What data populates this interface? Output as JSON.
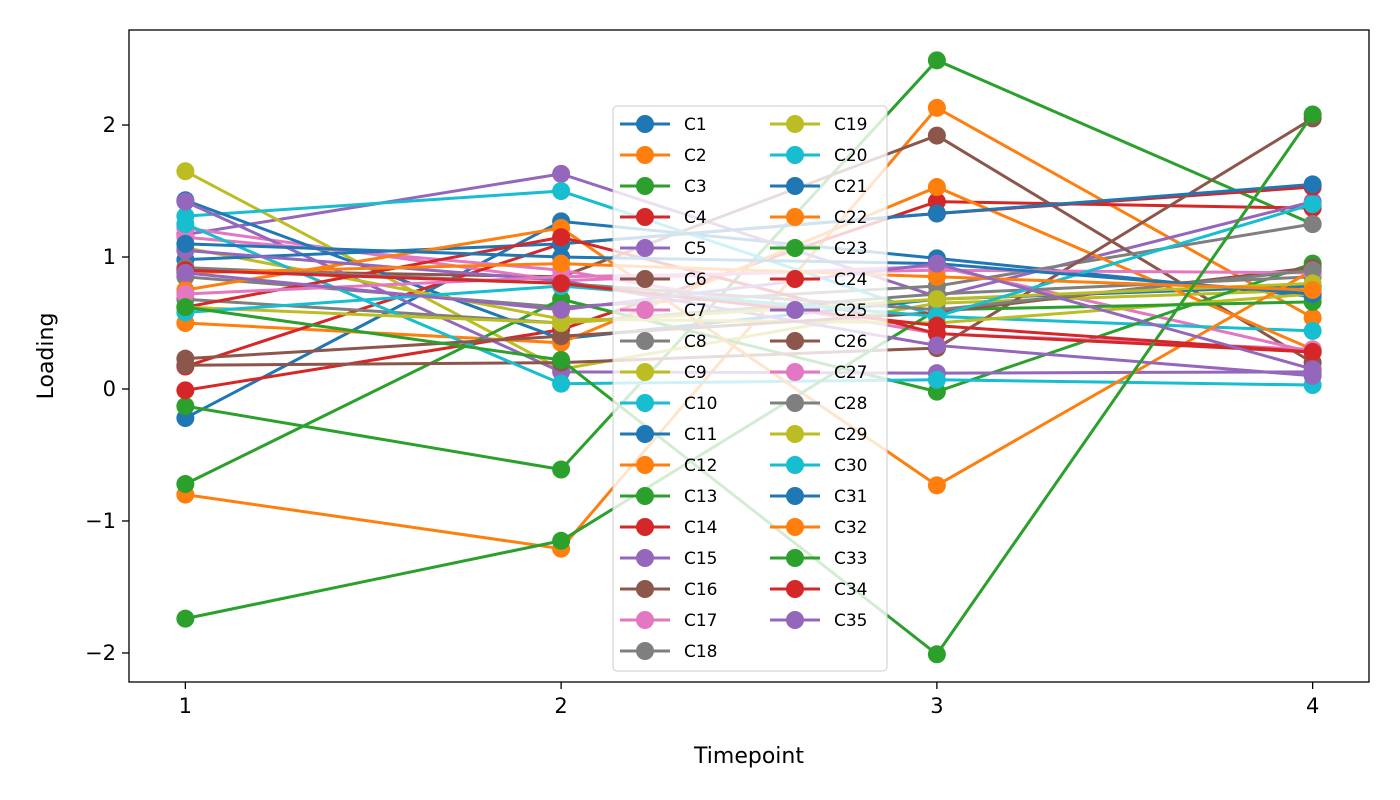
{
  "chart_data": {
    "type": "line",
    "xlabel": "Timepoint",
    "ylabel": "Loading",
    "x": [
      1,
      2,
      3,
      4
    ],
    "xticks": [
      1,
      2,
      3,
      4
    ],
    "yticks": [
      -2,
      -1,
      0,
      1,
      2
    ],
    "xlim": [
      0.85,
      4.15
    ],
    "ylim": [
      -2.22,
      2.72
    ],
    "grid": false,
    "legend_placement": "center",
    "legend_columns": 2,
    "markers": "circle",
    "palette": [
      "#1f77b4",
      "#ff7f0e",
      "#2ca02c",
      "#d62728",
      "#9467bd",
      "#8c564b",
      "#e377c2",
      "#7f7f7f",
      "#bcbd22",
      "#17becf"
    ],
    "series": [
      {
        "name": "C1",
        "values": [
          -0.22,
          1.27,
          0.99,
          0.7
        ]
      },
      {
        "name": "C2",
        "values": [
          -0.8,
          -1.21,
          2.13,
          0.54
        ]
      },
      {
        "name": "C3",
        "values": [
          -0.13,
          -0.61,
          2.49,
          1.25
        ]
      },
      {
        "name": "C4",
        "values": [
          -0.01,
          0.45,
          1.42,
          1.37
        ]
      },
      {
        "name": "C5",
        "values": [
          1.17,
          1.63,
          0.7,
          1.42
        ]
      },
      {
        "name": "C6",
        "values": [
          0.9,
          0.85,
          1.92,
          0.2
        ]
      },
      {
        "name": "C7",
        "values": [
          1.22,
          0.82,
          0.93,
          0.28
        ]
      },
      {
        "name": "C8",
        "values": [
          0.85,
          0.62,
          0.78,
          1.25
        ]
      },
      {
        "name": "C9",
        "values": [
          1.65,
          0.15,
          0.65,
          0.75
        ]
      },
      {
        "name": "C10",
        "values": [
          1.31,
          1.5,
          0.55,
          0.44
        ]
      },
      {
        "name": "C11",
        "values": [
          1.43,
          0.38,
          0.68,
          0.78
        ]
      },
      {
        "name": "C12",
        "values": [
          0.5,
          0.35,
          1.53,
          0.3
        ]
      },
      {
        "name": "C13",
        "values": [
          -0.72,
          0.68,
          -0.02,
          0.95
        ]
      },
      {
        "name": "C14",
        "values": [
          0.17,
          1.1,
          1.33,
          1.53
        ]
      },
      {
        "name": "C15",
        "values": [
          1.42,
          0.13,
          0.12,
          0.13
        ]
      },
      {
        "name": "C16",
        "values": [
          0.18,
          0.2,
          0.31,
          2.05
        ]
      },
      {
        "name": "C17",
        "values": [
          1.15,
          0.9,
          0.42,
          0.3
        ]
      },
      {
        "name": "C18",
        "values": [
          0.68,
          0.5,
          0.72,
          0.85
        ]
      },
      {
        "name": "C19",
        "values": [
          1.07,
          0.53,
          0.5,
          0.72
        ]
      },
      {
        "name": "C20",
        "values": [
          1.25,
          0.04,
          0.07,
          0.03
        ]
      },
      {
        "name": "C21",
        "values": [
          0.98,
          1.1,
          1.33,
          1.55
        ]
      },
      {
        "name": "C22",
        "values": [
          0.75,
          1.22,
          -0.73,
          0.9
        ]
      },
      {
        "name": "C23",
        "values": [
          -1.74,
          -1.15,
          0.6,
          0.66
        ]
      },
      {
        "name": "C24",
        "values": [
          0.62,
          1.15,
          0.42,
          0.28
        ]
      },
      {
        "name": "C25",
        "values": [
          1.05,
          0.82,
          0.33,
          0.1
        ]
      },
      {
        "name": "C26",
        "values": [
          0.23,
          0.4,
          0.58,
          0.92
        ]
      },
      {
        "name": "C27",
        "values": [
          0.72,
          0.85,
          0.9,
          0.88
        ]
      },
      {
        "name": "C28",
        "values": [
          0.92,
          0.8,
          0.6,
          0.9
        ]
      },
      {
        "name": "C29",
        "values": [
          0.62,
          0.5,
          0.68,
          0.8
        ]
      },
      {
        "name": "C30",
        "values": [
          0.58,
          0.78,
          0.55,
          1.4
        ]
      },
      {
        "name": "C31",
        "values": [
          1.1,
          1.0,
          0.95,
          0.72
        ]
      },
      {
        "name": "C32",
        "values": [
          0.88,
          0.95,
          0.85,
          0.75
        ]
      },
      {
        "name": "C33",
        "values": [
          0.62,
          0.22,
          -2.01,
          2.08
        ]
      },
      {
        "name": "C34",
        "values": [
          0.9,
          0.8,
          0.48,
          0.28
        ]
      },
      {
        "name": "C35",
        "values": [
          0.88,
          0.6,
          0.95,
          0.15
        ]
      }
    ]
  }
}
